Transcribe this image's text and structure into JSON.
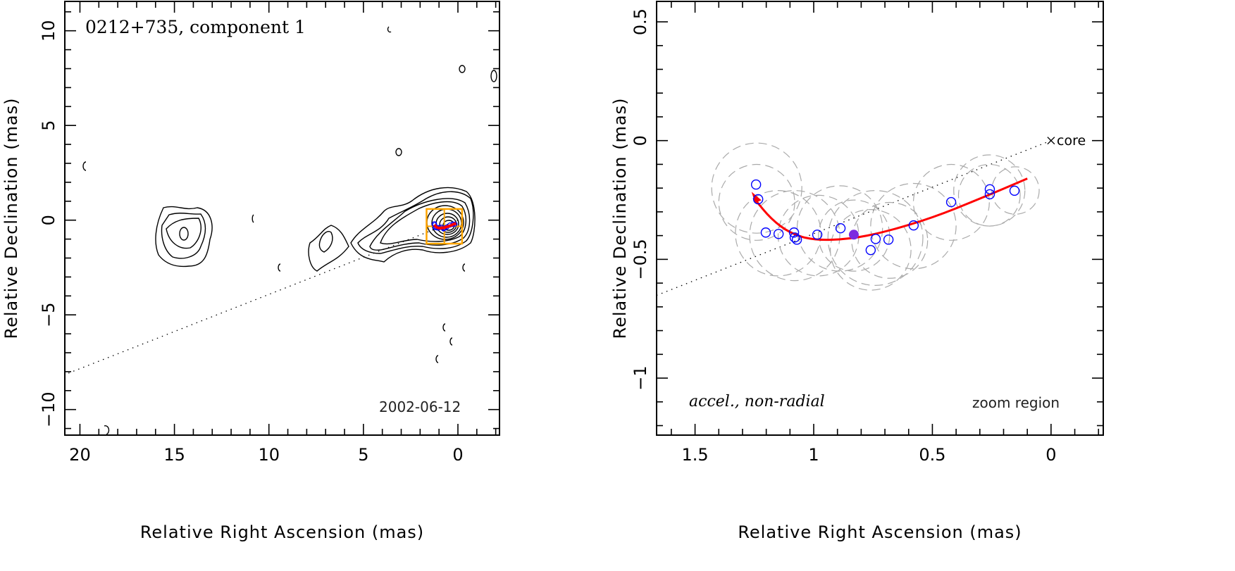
{
  "chart_data": [
    {
      "type": "contour",
      "title": "0212+735, component 1",
      "date_label": "2002-06-12",
      "xlabel": "Relative Right Ascension (mas)",
      "ylabel": "Relative Declination (mas)",
      "xlim": [
        20.8,
        -2.2
      ],
      "ylim": [
        -11.35,
        11.55
      ],
      "xticks": [
        20,
        15,
        10,
        5,
        0
      ],
      "yticks": [
        10,
        5,
        0,
        -5,
        -10
      ],
      "zoom_box": {
        "x": [
          1.66,
          -0.22
        ],
        "y": [
          0.59,
          -1.24
        ]
      },
      "jet_axis_slope": -0.392,
      "colors": {
        "contour": "#000000",
        "zoom_box": "#ffa500",
        "track": "#ff0000",
        "points": "#0000ff"
      }
    },
    {
      "type": "scatter",
      "label": "accel., non-radial",
      "zoom_label": "zoom region",
      "core_label": "core",
      "xlabel": "Relative Right Ascension (mas)",
      "ylabel": "Relative Declination (mas)",
      "xlim": [
        1.662,
        -0.22
      ],
      "ylim": [
        -1.24,
        0.586
      ],
      "xticks": [
        1.5,
        1,
        0.5,
        0
      ],
      "xtick_labels": [
        "1.5",
        "1",
        "0.5",
        "0"
      ],
      "yticks": [
        0.5,
        0,
        -0.5,
        -1
      ],
      "ytick_labels": [
        "0.5",
        "0",
        "−0.5",
        "−1"
      ],
      "core": [
        0,
        0
      ],
      "jet_axis_slope": -0.392,
      "points": [
        [
          1.243,
          -0.185
        ],
        [
          1.234,
          -0.247
        ],
        [
          1.202,
          -0.387
        ],
        [
          1.148,
          -0.393
        ],
        [
          1.083,
          -0.387
        ],
        [
          1.08,
          -0.408
        ],
        [
          1.071,
          -0.417
        ],
        [
          0.985,
          -0.396
        ],
        [
          0.887,
          -0.369
        ],
        [
          0.76,
          -0.461
        ],
        [
          0.739,
          -0.414
        ],
        [
          0.685,
          -0.417
        ],
        [
          0.579,
          -0.357
        ],
        [
          0.421,
          -0.259
        ],
        [
          0.258,
          -0.205
        ],
        [
          0.258,
          -0.226
        ],
        [
          0.154,
          -0.211
        ]
      ],
      "highlight_point": [
        0.831,
        -0.396
      ],
      "component_sizes": [
        [
          1.24,
          -0.2,
          0.19
        ],
        [
          1.24,
          -0.26,
          0.16
        ],
        [
          1.15,
          -0.39,
          0.18
        ],
        [
          1.08,
          -0.4,
          0.19
        ],
        [
          0.98,
          -0.4,
          0.17
        ],
        [
          0.89,
          -0.37,
          0.18
        ],
        [
          0.76,
          -0.46,
          0.17
        ],
        [
          0.74,
          -0.41,
          0.2
        ],
        [
          0.68,
          -0.42,
          0.16
        ],
        [
          0.58,
          -0.36,
          0.18
        ],
        [
          0.42,
          -0.26,
          0.16
        ],
        [
          0.26,
          -0.21,
          0.15
        ],
        [
          0.26,
          -0.23,
          0.13
        ],
        [
          0.15,
          -0.21,
          0.1
        ],
        [
          0.83,
          -0.4,
          0.15
        ]
      ],
      "fit_track": [
        [
          0.1,
          -0.16
        ],
        [
          0.3,
          -0.245
        ],
        [
          0.5,
          -0.325
        ],
        [
          0.7,
          -0.385
        ],
        [
          0.85,
          -0.415
        ],
        [
          1.0,
          -0.42
        ],
        [
          1.1,
          -0.39
        ],
        [
          1.18,
          -0.33
        ],
        [
          1.25,
          -0.245
        ]
      ],
      "colors": {
        "points": "#0000ff",
        "highlight": "#7b2be0",
        "track": "#ff0000",
        "components": "#aaaaaa"
      }
    }
  ]
}
